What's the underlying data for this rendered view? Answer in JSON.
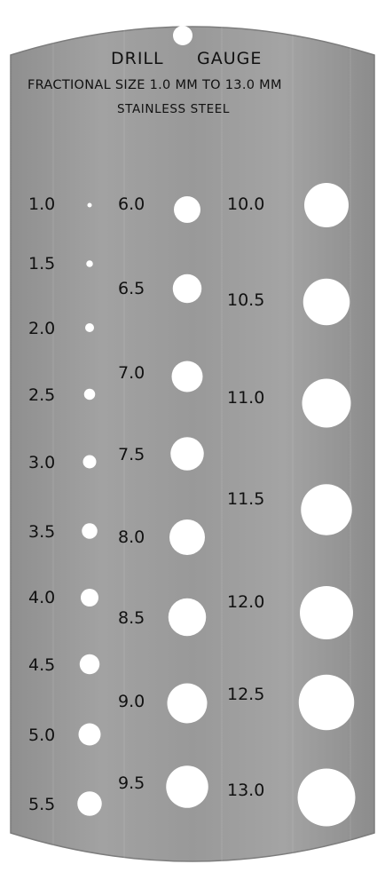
{
  "gauge": {
    "title_left": "DRILL",
    "title_right": "GAUGE",
    "subtitle": "FRACTIONAL SIZE 1.0 MM TO 13.0 MM",
    "material": "STAINLESS STEEL"
  },
  "colors": {
    "plate": "#9a9a9a",
    "plate_dark": "#8e8e8e",
    "plate_light": "#a6a6a6",
    "hole": "#ffffff",
    "text": "#111111"
  },
  "sizes": {
    "col1": [
      "1.0",
      "1.5",
      "2.0",
      "2.5",
      "3.0",
      "3.5",
      "4.0",
      "4.5",
      "5.0",
      "5.5"
    ],
    "col2": [
      "6.0",
      "6.5",
      "7.0",
      "7.5",
      "8.0",
      "8.5",
      "9.0",
      "9.5"
    ],
    "col3": [
      "10.0",
      "10.5",
      "11.0",
      "11.5",
      "12.0",
      "12.5",
      "13.0"
    ]
  }
}
